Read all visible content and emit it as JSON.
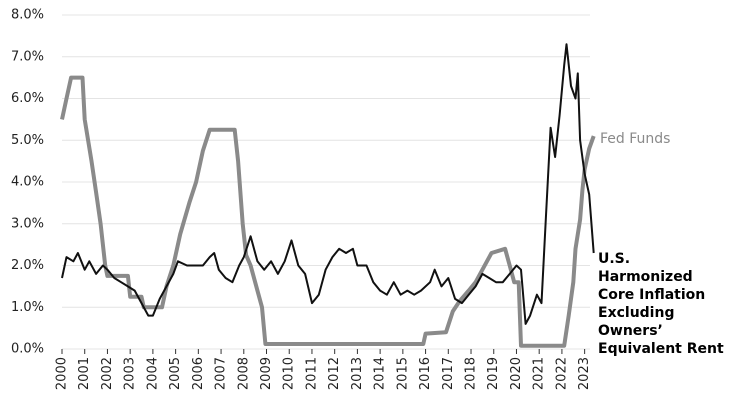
{
  "chart_data": {
    "type": "line",
    "xlim": [
      2000,
      2023.5
    ],
    "xticks": [
      2000,
      2001,
      2002,
      2003,
      2004,
      2005,
      2006,
      2007,
      2008,
      2009,
      2010,
      2011,
      2012,
      2013,
      2014,
      2015,
      2016,
      2017,
      2018,
      2019,
      2020,
      2021,
      2022,
      2023
    ],
    "ylim": [
      0,
      8
    ],
    "yticks": [
      {
        "value": 0,
        "label": "0.0%"
      },
      {
        "value": 1,
        "label": "1.0%"
      },
      {
        "value": 2,
        "label": "2.0%"
      },
      {
        "value": 3,
        "label": "3.0%"
      },
      {
        "value": 4,
        "label": "4.0%"
      },
      {
        "value": 5,
        "label": "5.0%"
      },
      {
        "value": 6,
        "label": "6.0%"
      },
      {
        "value": 7,
        "label": "7.0%"
      },
      {
        "value": 8,
        "label": "8.0%"
      }
    ],
    "grid": true,
    "series": [
      {
        "name": "Fed Funds",
        "color": "#8a8a8a",
        "width": 4,
        "x": [
          2000.0,
          2000.2,
          2000.4,
          2000.9,
          2001.0,
          2001.3,
          2001.5,
          2001.7,
          2001.9,
          2002.0,
          2002.9,
          2003.0,
          2003.5,
          2003.6,
          2004.4,
          2004.6,
          2004.9,
          2005.2,
          2005.6,
          2005.9,
          2006.2,
          2006.5,
          2007.6,
          2007.75,
          2007.95,
          2008.1,
          2008.3,
          2008.8,
          2008.95,
          2015.9,
          2016.0,
          2016.9,
          2017.2,
          2017.5,
          2017.9,
          2018.2,
          2018.5,
          2018.9,
          2019.5,
          2019.7,
          2019.9,
          2020.1,
          2020.2,
          2022.1,
          2022.3,
          2022.5,
          2022.6,
          2022.8,
          2022.9,
          2023.0,
          2023.2,
          2023.4
        ],
        "values": [
          5.5,
          6.0,
          6.5,
          6.5,
          5.5,
          4.5,
          3.75,
          3.0,
          2.0,
          1.75,
          1.75,
          1.25,
          1.25,
          1.0,
          1.0,
          1.5,
          2.0,
          2.75,
          3.5,
          4.0,
          4.75,
          5.25,
          5.25,
          4.5,
          3.0,
          2.25,
          2.0,
          1.0,
          0.12,
          0.12,
          0.37,
          0.4,
          0.9,
          1.15,
          1.4,
          1.6,
          1.9,
          2.3,
          2.4,
          2.0,
          1.6,
          1.6,
          0.08,
          0.08,
          0.8,
          1.6,
          2.4,
          3.1,
          3.8,
          4.3,
          4.8,
          5.1
        ]
      },
      {
        "name": "U.S. Harmonized Core Inflation Excluding Owners’ Equivalent Rent",
        "color": "#111111",
        "width": 2,
        "x": [
          2000.0,
          2000.2,
          2000.5,
          2000.7,
          2001.0,
          2001.2,
          2001.5,
          2001.8,
          2002.0,
          2002.3,
          2002.6,
          2002.9,
          2003.2,
          2003.5,
          2003.8,
          2004.0,
          2004.3,
          2004.6,
          2004.9,
          2005.1,
          2005.5,
          2005.9,
          2006.2,
          2006.5,
          2006.7,
          2006.9,
          2007.2,
          2007.5,
          2007.8,
          2008.0,
          2008.3,
          2008.6,
          2008.9,
          2009.2,
          2009.5,
          2009.8,
          2010.1,
          2010.4,
          2010.7,
          2011.0,
          2011.3,
          2011.6,
          2011.9,
          2012.2,
          2012.5,
          2012.8,
          2013.0,
          2013.4,
          2013.7,
          2014.0,
          2014.3,
          2014.6,
          2014.9,
          2015.2,
          2015.5,
          2015.8,
          2016.2,
          2016.4,
          2016.7,
          2017.0,
          2017.3,
          2017.6,
          2017.9,
          2018.2,
          2018.5,
          2018.8,
          2019.1,
          2019.4,
          2019.7,
          2020.0,
          2020.2,
          2020.4,
          2020.6,
          2020.9,
          2021.1,
          2021.3,
          2021.5,
          2021.7,
          2021.9,
          2022.1,
          2022.2,
          2022.4,
          2022.6,
          2022.7,
          2022.8,
          2023.0,
          2023.2,
          2023.4
        ],
        "values": [
          1.7,
          2.2,
          2.1,
          2.3,
          1.9,
          2.1,
          1.8,
          2.0,
          1.9,
          1.7,
          1.6,
          1.5,
          1.4,
          1.1,
          0.8,
          0.8,
          1.2,
          1.5,
          1.8,
          2.1,
          2.0,
          2.0,
          2.0,
          2.2,
          2.3,
          1.9,
          1.7,
          1.6,
          2.0,
          2.2,
          2.7,
          2.1,
          1.9,
          2.1,
          1.8,
          2.1,
          2.6,
          2.0,
          1.8,
          1.1,
          1.3,
          1.9,
          2.2,
          2.4,
          2.3,
          2.4,
          2.0,
          2.0,
          1.6,
          1.4,
          1.3,
          1.6,
          1.3,
          1.4,
          1.3,
          1.4,
          1.6,
          1.9,
          1.5,
          1.7,
          1.2,
          1.1,
          1.3,
          1.5,
          1.8,
          1.7,
          1.6,
          1.6,
          1.8,
          2.0,
          1.9,
          0.6,
          0.8,
          1.3,
          1.1,
          3.2,
          5.3,
          4.6,
          5.6,
          6.8,
          7.3,
          6.3,
          6.0,
          6.6,
          5.0,
          4.2,
          3.7,
          2.3
        ]
      }
    ]
  }
}
